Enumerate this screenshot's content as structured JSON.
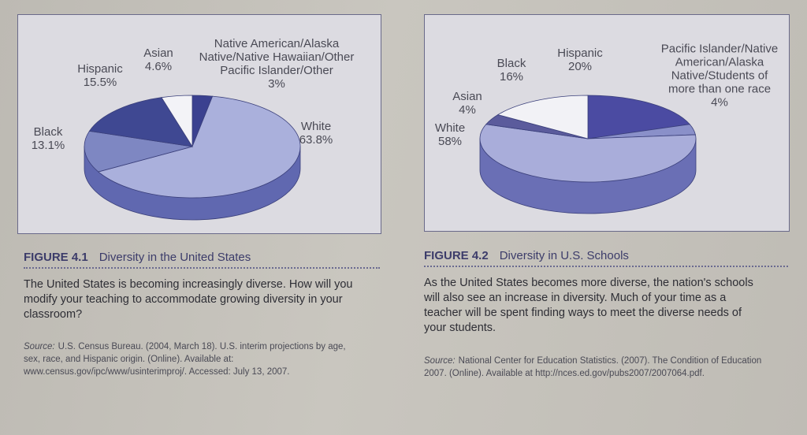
{
  "chart_data": [
    {
      "type": "pie",
      "figure_label": "FIGURE 4.1",
      "title": "Diversity in the United States",
      "description": "The United States is becoming increasingly diverse. How will you modify your teaching to accommodate growing diversity in your classroom?",
      "source_label": "Source:",
      "source": "U.S. Census Bureau. (2004, March 18). U.S. interim projections by age, sex, race, and Hispanic origin. (Online). Available at: www.census.gov/ipc/www/usinterimproj/. Accessed: July 13, 2007.",
      "categories": [
        "Native American/Alaska Native/Native Hawaiian/Other Pacific Islander/Other",
        "White",
        "Black",
        "Hispanic",
        "Asian"
      ],
      "values": [
        3,
        63.8,
        13.1,
        15.5,
        4.6
      ],
      "value_labels": [
        "3%",
        "63.8%",
        "13.1%",
        "15.5%",
        "4.6%"
      ],
      "colors": [
        "#3b4190",
        "#aab0dc",
        "#7e87c2",
        "#3f4892",
        "#f3f3f7"
      ]
    },
    {
      "type": "pie",
      "figure_label": "FIGURE 4.2",
      "title": "Diversity in U.S. Schools",
      "description": "As the United States becomes more diverse, the nation's schools will also see an increase in diversity. Much of your time as a teacher will be spent finding ways to meet the diverse needs of your students.",
      "source_label": "Source:",
      "source": "National Center for Education Statistics. (2007). The Condition of Education 2007. (Online). Available at http://nces.ed.gov/pubs2007/2007064.pdf.",
      "categories": [
        "Hispanic",
        "Pacific Islander/Native American/Alaska Native/Students of more than one race",
        "White",
        "Asian",
        "Black"
      ],
      "values": [
        20,
        4,
        58,
        4,
        16
      ],
      "value_labels": [
        "20%",
        "4%",
        "58%",
        "4%",
        "16%"
      ],
      "colors": [
        "#4b4ba2",
        "#8a90c9",
        "#a9addA",
        "#5b5b9c",
        "#f2f2f6"
      ]
    }
  ]
}
